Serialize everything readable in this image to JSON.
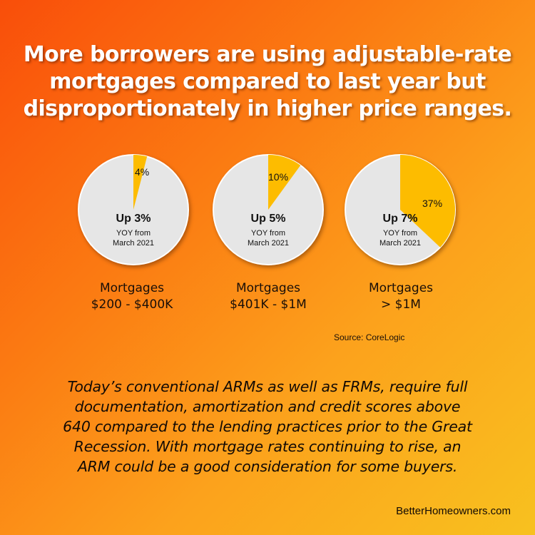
{
  "headline": {
    "line1": "More borrowers are using adjustable-rate",
    "line2": "mortgages compared to last year but",
    "line3": "disproportionately in higher price ranges."
  },
  "colors": {
    "pie_base": "#e6e6e6",
    "pie_slice": "#fdbc00",
    "pie_outline": "#ffffff"
  },
  "chart_data": [
    {
      "type": "pie",
      "slices": [
        {
          "label": "4%",
          "value": 4
        }
      ],
      "center_label": "Up 3%",
      "center_sub": [
        "YOY from",
        "March 2021"
      ],
      "category": [
        "Mortgages",
        "$200 - $400K"
      ]
    },
    {
      "type": "pie",
      "slices": [
        {
          "label": "10%",
          "value": 10
        }
      ],
      "center_label": "Up 5%",
      "center_sub": [
        "YOY from",
        "March 2021"
      ],
      "category": [
        "Mortgages",
        "$401K - $1M"
      ]
    },
    {
      "type": "pie",
      "slices": [
        {
          "label": "37%",
          "value": 37
        }
      ],
      "center_label": "Up 7%",
      "center_sub": [
        "YOY from",
        "March 2021"
      ],
      "category": [
        "Mortgages",
        "> $1M"
      ]
    }
  ],
  "source": "Source: CoreLogic",
  "body": {
    "line1": "Today’s conventional ARMs as well as FRMs, require full",
    "line2": "documentation, amortization and credit scores above",
    "line3": "640 compared to the lending practices prior to the Great",
    "line4": "Recession.  With mortgage rates continuing to rise, an",
    "line5": "ARM could be a good consideration for some buyers."
  },
  "brand": "BetterHomeowners.com"
}
